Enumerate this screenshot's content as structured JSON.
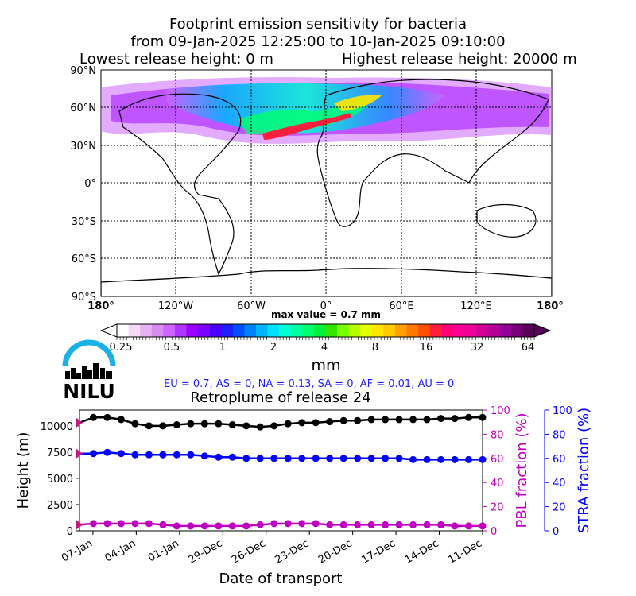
{
  "title": {
    "line1": "Footprint emission sensitivity for bacteria",
    "line2": "from 09-Jan-2025 12:25:00 to 10-Jan-2025 09:10:00",
    "line3_left": "Lowest release height: 0 m",
    "line3_right": "Highest release height: 20000 m"
  },
  "map": {
    "lat_ticks": [
      "90°N",
      "60°N",
      "30°N",
      "0°",
      "30°S",
      "60°S",
      "90°S"
    ],
    "lon_ticks": [
      "180°",
      "120°W",
      "60°W",
      "0°",
      "60°E",
      "120°E",
      "180°"
    ],
    "max_value_label": "max value = 0.7 mm"
  },
  "colorbar": {
    "tick_labels": [
      "0.25",
      "0.5",
      "1",
      "2",
      "4",
      "8",
      "16",
      "32",
      "64"
    ],
    "unit": "mm",
    "colors": [
      "#ffffff",
      "#f2d9f7",
      "#e6b3f2",
      "#d98cf0",
      "#cc66ff",
      "#b233ff",
      "#9900ff",
      "#7a00ff",
      "#4b00ff",
      "#1e1eff",
      "#0050ff",
      "#0082ff",
      "#00b4ff",
      "#00e1ff",
      "#00ffd2",
      "#00ffa0",
      "#00ff6e",
      "#00f03c",
      "#32e600",
      "#78ff00",
      "#b4ff00",
      "#e6ff00",
      "#ffe600",
      "#ffc800",
      "#ffa000",
      "#ff7800",
      "#ff5000",
      "#ff1e3c",
      "#ff0078",
      "#ff0096",
      "#f00096",
      "#d20096",
      "#b40096",
      "#960096",
      "#780078",
      "#5a005a"
    ]
  },
  "logo": {
    "text": "NILU",
    "colors": {
      "arc": "#1ab2e6",
      "text": "#000000"
    }
  },
  "region_summary": "EU = 0.7,  AS = 0,  NA = 0.13,  SA = 0,  AF = 0.01,  AU = 0",
  "chart_data": {
    "type": "line",
    "title": "Retroplume of release 24",
    "xlabel": "Date of transport",
    "ylabel": "Height (m)",
    "y2label": "PBL fraction (%)",
    "y3label": "STRA fraction (%)",
    "xticks": [
      "07-Jan",
      "04-Jan",
      "01-Jan",
      "29-Dec",
      "26-Dec",
      "23-Dec",
      "20-Dec",
      "17-Dec",
      "14-Dec",
      "11-Dec"
    ],
    "xlim": [
      0,
      30
    ],
    "ylim": [
      0,
      11500
    ],
    "y2lim": [
      0,
      100
    ],
    "y3lim": [
      0,
      100
    ],
    "yticks": [
      0,
      2500,
      5000,
      7500,
      10000
    ],
    "y2ticks": [
      0,
      20,
      40,
      60,
      80,
      100
    ],
    "y3ticks": [
      0,
      20,
      40,
      60,
      80,
      100
    ],
    "series": [
      {
        "axis": "height",
        "color": "#000000",
        "values": [
          10300,
          10800,
          10800,
          10600,
          10200,
          10000,
          10000,
          10100,
          10200,
          10200,
          10200,
          10100,
          10000,
          9900,
          10000,
          10200,
          10300,
          10300,
          10400,
          10500,
          10500,
          10600,
          10600,
          10600,
          10600,
          10600,
          10700,
          10700,
          10800,
          10800
        ]
      },
      {
        "axis": "stra",
        "color": "#0000ff",
        "values": [
          64,
          64,
          65,
          64,
          63,
          63,
          63,
          63,
          63,
          62,
          61,
          61,
          60,
          60,
          60,
          60,
          60,
          60,
          60,
          60,
          60,
          60,
          60,
          60,
          59,
          59,
          59,
          59,
          59,
          59
        ]
      },
      {
        "axis": "pbl",
        "color": "#c000c0",
        "values": [
          5,
          6,
          6,
          6,
          6,
          6,
          5,
          4,
          4,
          4,
          4,
          4,
          4,
          5,
          6,
          6,
          6,
          6,
          5,
          5,
          5,
          5,
          5,
          5,
          5,
          5,
          5,
          4,
          4,
          4
        ]
      }
    ]
  }
}
